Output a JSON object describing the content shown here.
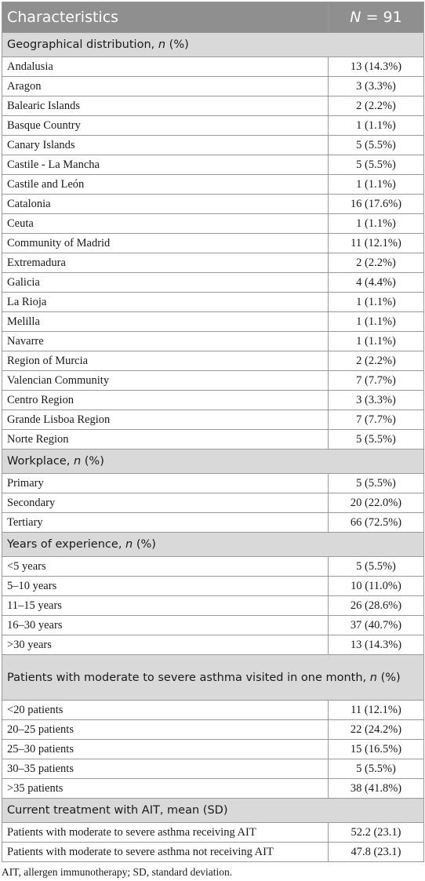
{
  "header": {
    "characteristics": "Characteristics",
    "n_label": "N",
    "n_value": "= 91"
  },
  "sections": [
    {
      "title": "Geographical distribution, ",
      "title_italic": "n",
      "title_suffix": " (%)",
      "rows": [
        {
          "label": "Andalusia",
          "value": "13 (14.3%)"
        },
        {
          "label": "Aragon",
          "value": "3 (3.3%)"
        },
        {
          "label": "Balearic Islands",
          "value": "2 (2.2%)"
        },
        {
          "label": "Basque Country",
          "value": "1 (1.1%)"
        },
        {
          "label": "Canary Islands",
          "value": "5 (5.5%)"
        },
        {
          "label": "Castile - La Mancha",
          "value": "5 (5.5%)"
        },
        {
          "label": "Castile and León",
          "value": "1 (1.1%)"
        },
        {
          "label": "Catalonia",
          "value": "16 (17.6%)"
        },
        {
          "label": "Ceuta",
          "value": "1 (1.1%)"
        },
        {
          "label": "Community of Madrid",
          "value": "11 (12.1%)"
        },
        {
          "label": "Extremadura",
          "value": "2 (2.2%)"
        },
        {
          "label": "Galicia",
          "value": "4 (4.4%)"
        },
        {
          "label": "La Rioja",
          "value": "1 (1.1%)"
        },
        {
          "label": "Melilla",
          "value": "1 (1.1%)"
        },
        {
          "label": "Navarre",
          "value": "1 (1.1%)"
        },
        {
          "label": "Region of Murcia",
          "value": "2 (2.2%)"
        },
        {
          "label": "Valencian Community",
          "value": "7 (7.7%)"
        },
        {
          "label": "Centro Region",
          "value": "3 (3.3%)"
        },
        {
          "label": "Grande Lisboa Region",
          "value": "7 (7.7%)"
        },
        {
          "label": "Norte Region",
          "value": "5 (5.5%)"
        }
      ]
    },
    {
      "title": "Workplace, ",
      "title_italic": "n",
      "title_suffix": " (%)",
      "rows": [
        {
          "label": "Primary",
          "value": "5 (5.5%)"
        },
        {
          "label": "Secondary",
          "value": "20 (22.0%)"
        },
        {
          "label": "Tertiary",
          "value": "66 (72.5%)"
        }
      ]
    },
    {
      "title": "Years of experience, ",
      "title_italic": "n",
      "title_suffix": " (%)",
      "rows": [
        {
          "label": "<5 years",
          "value": "5 (5.5%)"
        },
        {
          "label": "5–10 years",
          "value": "10 (11.0%)"
        },
        {
          "label": "11–15 years",
          "value": "26 (28.6%)"
        },
        {
          "label": "16–30 years",
          "value": "37 (40.7%)"
        },
        {
          "label": ">30 years",
          "value": "13 (14.3%)"
        }
      ]
    },
    {
      "title": "Patients with moderate to severe asthma visited in one month, ",
      "title_italic": "n",
      "title_suffix": " (%)",
      "rows": [
        {
          "label": "<20 patients",
          "value": "11 (12.1%)"
        },
        {
          "label": "20–25 patients",
          "value": "22 (24.2%)"
        },
        {
          "label": "25–30 patients",
          "value": "15 (16.5%)"
        },
        {
          "label": "30–35 patients",
          "value": "5 (5.5%)"
        },
        {
          "label": ">35 patients",
          "value": "38 (41.8%)"
        }
      ]
    },
    {
      "title": "Current treatment with AIT, mean (SD)",
      "title_italic": "",
      "title_suffix": "",
      "rows": [
        {
          "label": "Patients with moderate to severe asthma receiving AIT",
          "value": "52.2 (23.1)"
        },
        {
          "label": "Patients with moderate to severe asthma not receiving AIT",
          "value": "47.8 (23.1)"
        }
      ]
    }
  ],
  "footnote": "AIT, allergen immunotherapy; SD, standard deviation."
}
